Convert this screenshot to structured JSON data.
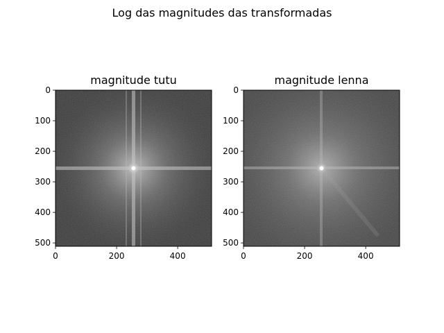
{
  "figure": {
    "suptitle": "Log das magnitudes das transformadas"
  },
  "colors": {
    "background": "#ffffff",
    "axes_edge": "#000000",
    "image_dark": "#3a3a3a",
    "image_light": "#e8e8e8"
  },
  "chart_data": [
    {
      "type": "heatmap",
      "title": "magnitude tutu",
      "xlabel": "",
      "ylabel": "",
      "colormap": "gray",
      "xlim": [
        0,
        511
      ],
      "ylim": [
        511,
        0
      ],
      "xticks": [
        0,
        200,
        400
      ],
      "yticks": [
        0,
        100,
        200,
        300,
        400,
        500
      ],
      "image_size": [
        512,
        512
      ],
      "peak_center": [
        256,
        256
      ],
      "cross_lines": {
        "horizontal_y": 256,
        "vertical_x": 256,
        "extra_vertical_x": [
          232,
          280
        ]
      }
    },
    {
      "type": "heatmap",
      "title": "magnitude lenna",
      "xlabel": "",
      "ylabel": "",
      "colormap": "gray",
      "xlim": [
        0,
        511
      ],
      "ylim": [
        511,
        0
      ],
      "xticks": [
        0,
        200,
        400
      ],
      "yticks": [
        0,
        100,
        200,
        300,
        400,
        500
      ],
      "image_size": [
        512,
        512
      ],
      "peak_center": [
        256,
        256
      ],
      "cross_lines": {
        "horizontal_y": 256,
        "vertical_x": 256,
        "extra_vertical_x": []
      }
    }
  ]
}
